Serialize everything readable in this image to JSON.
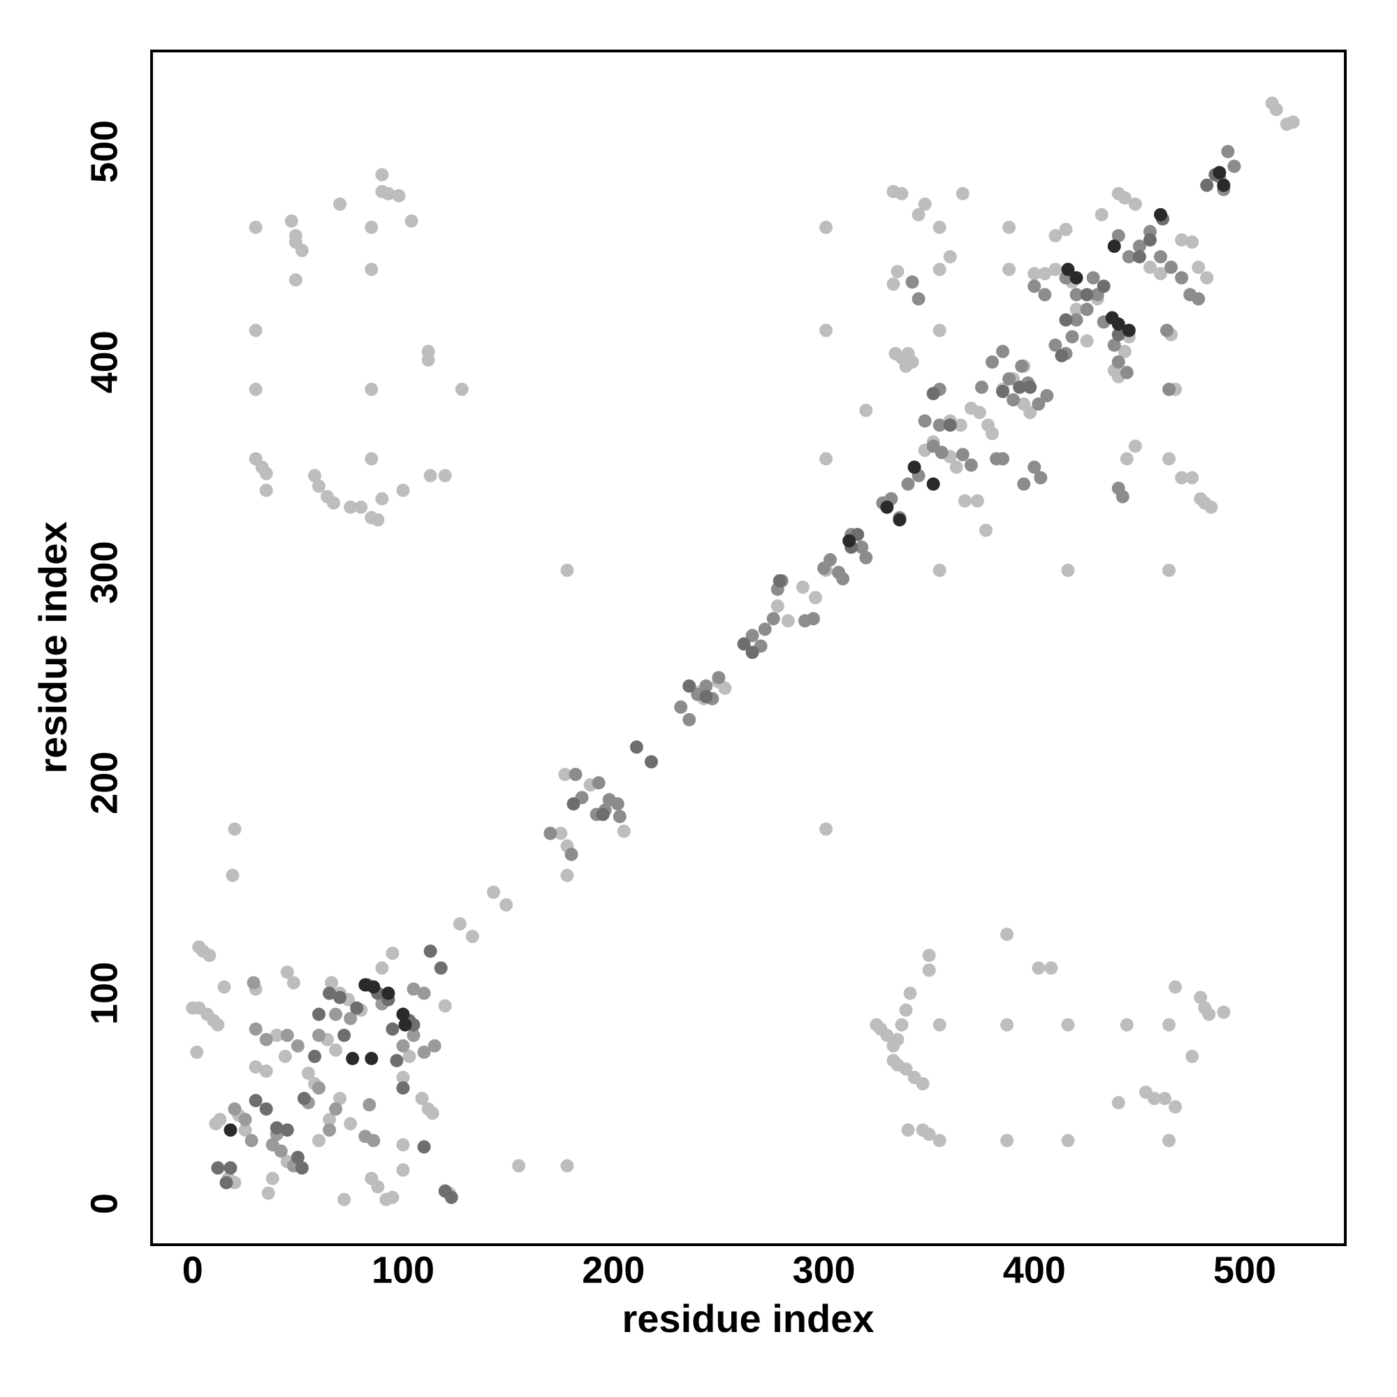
{
  "chart_data": {
    "type": "scatter",
    "xlabel": "residue index",
    "ylabel": "residue index",
    "xlim": [
      -19.5,
      547.8
    ],
    "ylim": [
      -19.5,
      547.8
    ],
    "xticks": [
      0,
      100,
      200,
      300,
      400,
      500
    ],
    "yticks": [
      0,
      100,
      200,
      300,
      400,
      500
    ],
    "grid": false,
    "series": [
      {
        "color": "#bdbdbd",
        "x": [
          30,
          30,
          30,
          30,
          33,
          35,
          35,
          47,
          49,
          49,
          52,
          49,
          70,
          85,
          85,
          85,
          85,
          90,
          90,
          93,
          98,
          104,
          112,
          112,
          128,
          113,
          120,
          58,
          60,
          64,
          67,
          75,
          80,
          85,
          88,
          90,
          100
        ],
        "y": [
          464,
          415,
          387,
          354,
          350,
          347,
          339,
          467,
          460,
          457,
          453,
          439,
          475,
          464,
          444,
          387,
          354,
          489,
          481,
          480,
          479,
          467,
          405,
          401,
          387,
          346,
          346,
          346,
          341,
          336,
          333,
          331,
          331,
          326,
          325,
          335,
          339
        ]
      },
      {
        "color": "#bdbdbd",
        "x": [
          325,
          327,
          330,
          333,
          335,
          337,
          339,
          341,
          333,
          335,
          339,
          343,
          347,
          350,
          350,
          355,
          340,
          347,
          350,
          355,
          387,
          387,
          387,
          402,
          408,
          416,
          416,
          440,
          444,
          453,
          457,
          462,
          464,
          464,
          467,
          467,
          475,
          479,
          481,
          483,
          490
        ],
        "y": [
          85,
          83,
          80,
          75,
          78,
          85,
          92,
          100,
          68,
          66,
          64,
          60,
          57,
          118,
          111,
          85,
          35,
          35,
          33,
          30,
          30,
          85,
          128,
          112,
          112,
          30,
          85,
          48,
          85,
          53,
          50,
          50,
          30,
          85,
          46,
          103,
          70,
          98,
          93,
          90,
          91
        ]
      },
      {
        "color": "#bdbdbd",
        "x": [
          301,
          301,
          301,
          301,
          301,
          355,
          416,
          464,
          178,
          333,
          337,
          348,
          355,
          355,
          355,
          366,
          360,
          345,
          448,
          444,
          464,
          467,
          470,
          475,
          481,
          484,
          479,
          465,
          388,
          388,
          320,
          377,
          373,
          367
        ],
        "y": [
          464,
          415,
          354,
          301,
          178,
          301,
          301,
          301,
          301,
          481,
          480,
          475,
          464,
          444,
          415,
          480,
          450,
          470,
          360,
          354,
          354,
          387,
          345,
          345,
          333,
          331,
          335,
          413,
          464,
          444,
          377,
          320,
          334,
          334
        ]
      },
      {
        "color": "#bdbdbd",
        "x": [
          515,
          513,
          520,
          523,
          155,
          178,
          143,
          149,
          127,
          133,
          20,
          19,
          178,
          178,
          175,
          205,
          189,
          177,
          283,
          290,
          278,
          296,
          250,
          253,
          243,
          240,
          3,
          5,
          8,
          0,
          3,
          7,
          10,
          12,
          2,
          15,
          13,
          11,
          17,
          20,
          36,
          38,
          72,
          85,
          88,
          92,
          95,
          100,
          100,
          120,
          122,
          95,
          90,
          109,
          112,
          114,
          100,
          103,
          80,
          74,
          66,
          70,
          68,
          64,
          55,
          58,
          40,
          44,
          30,
          35,
          45,
          48,
          30,
          25,
          22,
          45,
          60,
          65,
          70,
          75
        ],
        "y": [
          520,
          523,
          513,
          514,
          18,
          18,
          148,
          142,
          133,
          127,
          178,
          156,
          156,
          170,
          176,
          177,
          199,
          204,
          277,
          293,
          284,
          288,
          248,
          245,
          240,
          243,
          122,
          120,
          118,
          93,
          93,
          90,
          87,
          85,
          72,
          103,
          40,
          38,
          12,
          10,
          5,
          12,
          2,
          12,
          8,
          2,
          3,
          16,
          28,
          94,
          5,
          119,
          112,
          50,
          45,
          43,
          60,
          70,
          92,
          97,
          105,
          100,
          73,
          78,
          62,
          57,
          80,
          70,
          65,
          63,
          110,
          105,
          102,
          35,
          42,
          20,
          30,
          40,
          50,
          38
        ]
      },
      {
        "color": "#bdbdbd",
        "x": [
          370,
          374,
          378,
          380,
          365,
          360,
          385,
          390,
          395,
          400,
          405,
          410,
          415,
          432,
          440,
          443,
          448,
          470,
          475,
          478,
          482,
          460,
          455,
          334,
          337,
          342,
          333,
          335,
          339,
          340,
          410,
          418,
          420,
          430,
          438,
          440,
          443,
          425,
          445,
          395,
          398,
          360,
          363,
          348,
          352
        ],
        "y": [
          378,
          376,
          370,
          366,
          370,
          372,
          387,
          392,
          398,
          442,
          442,
          460,
          463,
          470,
          480,
          478,
          475,
          458,
          457,
          445,
          440,
          442,
          445,
          404,
          402,
          400,
          437,
          443,
          398,
          404,
          444,
          438,
          425,
          430,
          396,
          393,
          405,
          410,
          412,
          380,
          376,
          355,
          350,
          358,
          362
        ]
      },
      {
        "color": "#9a9a9a",
        "x": [
          29,
          30,
          35,
          45,
          50,
          60,
          68,
          75,
          84,
          82,
          86,
          100,
          105,
          110,
          115,
          100,
          90,
          20,
          25,
          28,
          38,
          42,
          48,
          40,
          55,
          60,
          65,
          68,
          110,
          105
        ],
        "y": [
          105,
          83,
          78,
          80,
          75,
          80,
          90,
          88,
          47,
          32,
          30,
          75,
          80,
          72,
          75,
          90,
          95,
          45,
          40,
          30,
          28,
          25,
          18,
          33,
          48,
          55,
          35,
          45,
          100,
          102
        ]
      },
      {
        "color": "#8c8c8c",
        "x": [
          202,
          198,
          192,
          180,
          170,
          182,
          185,
          193,
          196,
          203,
          232,
          236,
          240,
          244,
          247,
          250,
          266,
          270,
          272,
          276,
          278,
          280,
          291,
          295,
          300,
          303,
          307,
          309,
          313,
          318,
          320,
          328,
          332,
          336,
          340,
          345,
          352,
          356,
          366,
          370,
          382,
          385,
          390,
          388,
          394,
          397,
          402,
          406,
          410,
          415,
          418,
          420,
          425,
          430,
          433,
          438,
          440,
          444,
          450,
          455,
          460,
          463,
          465,
          470,
          474,
          478,
          488,
          490,
          495,
          492,
          385,
          380,
          375,
          342,
          345,
          400,
          403,
          395,
          440,
          442,
          464,
          355,
          355,
          348,
          400,
          405,
          415,
          420,
          428,
          440,
          445
        ],
        "y": [
          190,
          192,
          185,
          166,
          176,
          204,
          193,
          200,
          187,
          184,
          236,
          230,
          242,
          246,
          240,
          250,
          270,
          265,
          273,
          278,
          292,
          296,
          277,
          278,
          302,
          306,
          300,
          297,
          318,
          312,
          307,
          333,
          335,
          326,
          342,
          346,
          360,
          357,
          356,
          351,
          354,
          354,
          382,
          392,
          398,
          390,
          380,
          384,
          408,
          404,
          412,
          420,
          425,
          432,
          419,
          408,
          400,
          395,
          455,
          462,
          450,
          415,
          445,
          440,
          432,
          430,
          488,
          482,
          493,
          500,
          405,
          400,
          388,
          438,
          430,
          350,
          345,
          342,
          340,
          336,
          387,
          387,
          370,
          372,
          436,
          432,
          440,
          432,
          440,
          460,
          450
        ]
      },
      {
        "color": "#6e6e6e",
        "x": [
          18,
          16,
          12,
          30,
          35,
          40,
          45,
          50,
          52,
          53,
          58,
          60,
          65,
          70,
          72,
          78,
          83,
          88,
          93,
          95,
          97,
          100,
          103,
          105,
          110,
          113,
          118,
          120,
          123,
          181,
          195,
          211,
          218,
          236,
          244,
          262,
          266,
          279,
          313,
          316,
          352,
          360,
          385,
          393,
          398,
          413,
          415,
          425,
          433,
          440,
          450,
          455,
          461,
          482,
          486
        ],
        "y": [
          17,
          10,
          17,
          49,
          45,
          36,
          35,
          22,
          17,
          50,
          70,
          90,
          100,
          98,
          80,
          93,
          104,
          100,
          97,
          83,
          68,
          55,
          87,
          85,
          27,
          120,
          112,
          6,
          3,
          190,
          185,
          217,
          210,
          246,
          241,
          266,
          262,
          296,
          312,
          318,
          385,
          370,
          386,
          388,
          388,
          403,
          420,
          432,
          436,
          413,
          450,
          458,
          468,
          484,
          489
        ]
      },
      {
        "color": "#2a2a2a",
        "x": [
          82,
          86,
          93,
          100,
          101,
          85,
          76,
          18,
          330,
          336,
          343,
          352,
          416,
          420,
          437,
          440,
          445,
          312,
          488,
          490,
          438,
          460
        ],
        "y": [
          104,
          103,
          100,
          90,
          85,
          69,
          69,
          35,
          331,
          325,
          350,
          342,
          444,
          440,
          421,
          418,
          415,
          315,
          490,
          484,
          455,
          470
        ]
      }
    ]
  }
}
